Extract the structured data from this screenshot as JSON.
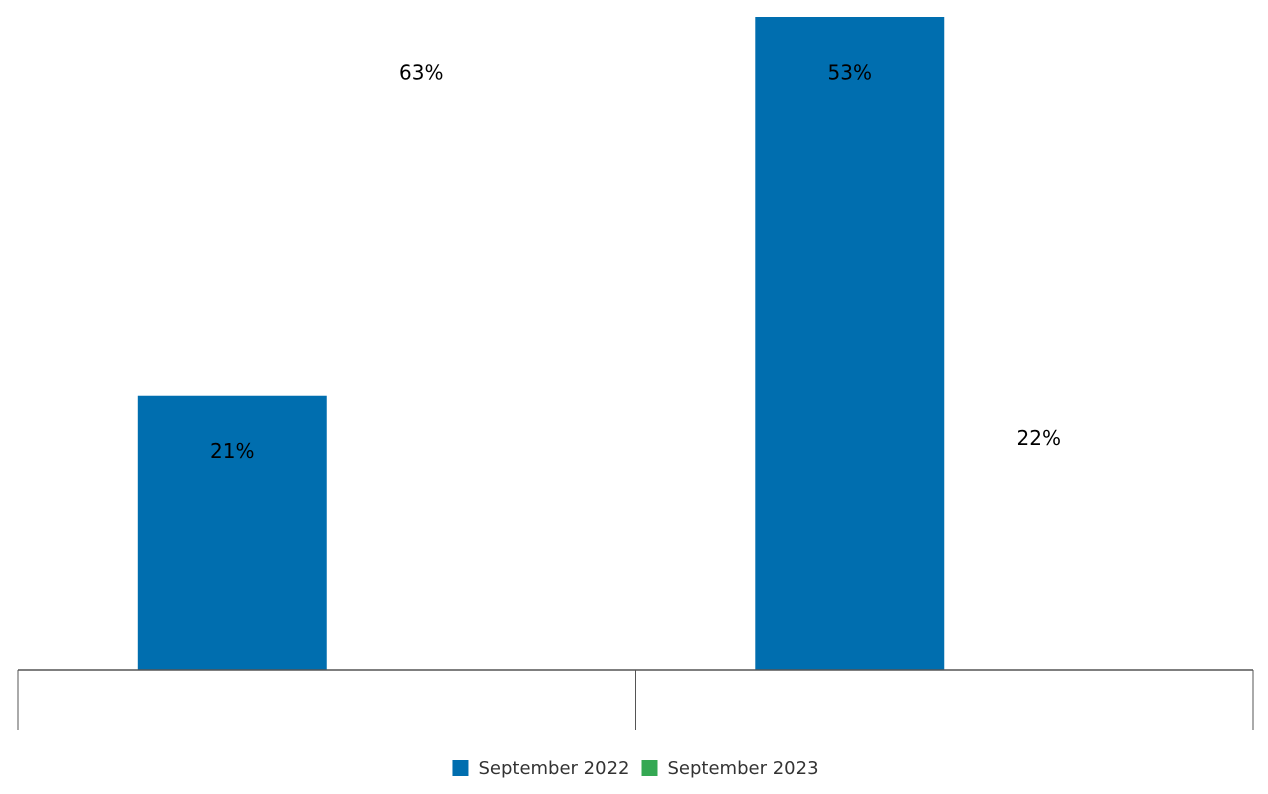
{
  "chart_data": {
    "type": "bar",
    "categories": [
      null,
      null
    ],
    "series": [
      {
        "name": "September 2022",
        "color": "#006eaf",
        "values": [
          21,
          53
        ],
        "value_labels": [
          "21%",
          "53%"
        ]
      },
      {
        "name": "September 2023",
        "color": "#34a853",
        "values": [
          63,
          22
        ],
        "value_labels": [
          "63%",
          "22%"
        ]
      }
    ],
    "ylim": [
      0,
      50
    ],
    "grid": false,
    "legend": "bottom"
  }
}
